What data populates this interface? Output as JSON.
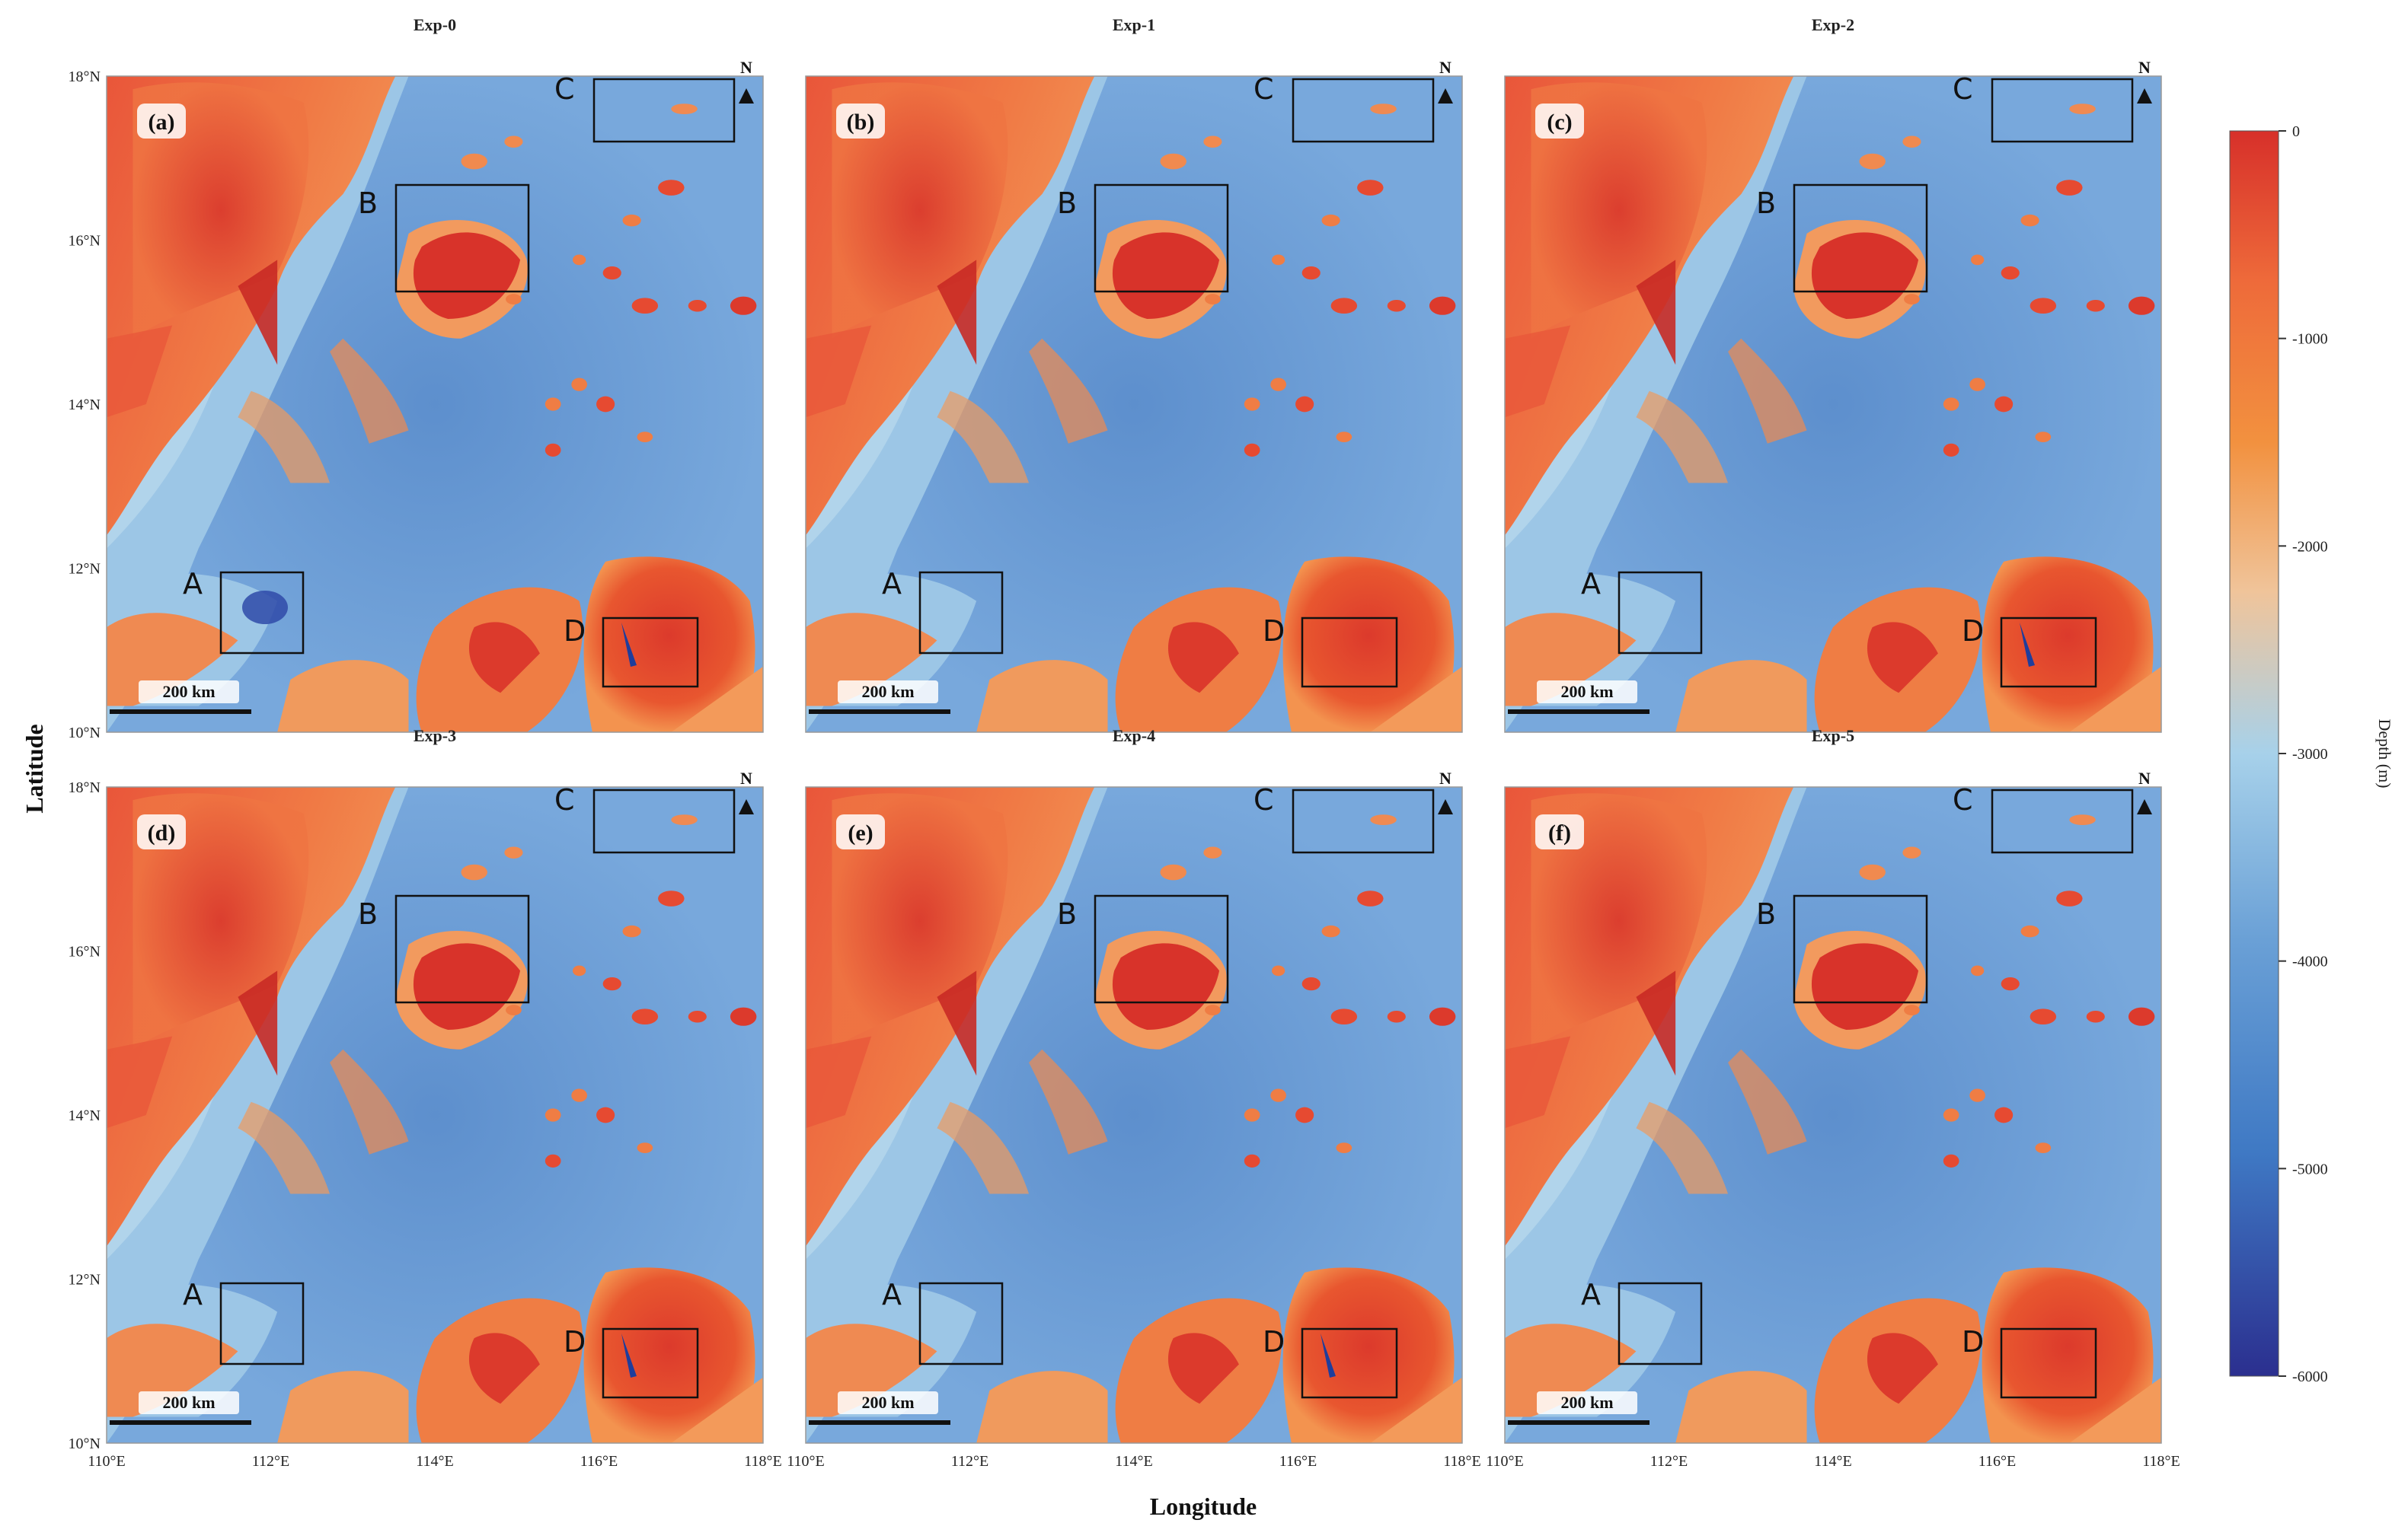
{
  "figure": {
    "x_axis_title": "Longitude",
    "y_axis_title": "Latitude",
    "x_tick_labels": [
      "110°E",
      "112°E",
      "114°E",
      "116°E",
      "118°E"
    ],
    "y_tick_labels": [
      "18°N",
      "16°N",
      "14°N",
      "12°N",
      "10°N"
    ],
    "region_labels": [
      "A",
      "B",
      "C",
      "D"
    ],
    "north_label": "N",
    "scale_bar_label": "200 km"
  },
  "panels": [
    {
      "title": "Exp-0",
      "label": "(a)",
      "anomaly_a": true,
      "anomaly_d": true
    },
    {
      "title": "Exp-1",
      "label": "(b)",
      "anomaly_a": false,
      "anomaly_d": false
    },
    {
      "title": "Exp-2",
      "label": "(c)",
      "anomaly_a": false,
      "anomaly_d": true
    },
    {
      "title": "Exp-3",
      "label": "(d)",
      "anomaly_a": false,
      "anomaly_d": true
    },
    {
      "title": "Exp-4",
      "label": "(e)",
      "anomaly_a": false,
      "anomaly_d": true
    },
    {
      "title": "Exp-5",
      "label": "(f)",
      "anomaly_a": false,
      "anomaly_d": false
    }
  ],
  "colorbar": {
    "title": "Depth (m)",
    "ticks": [
      "0",
      "-1000",
      "-2000",
      "-3000",
      "-4000",
      "-5000",
      "-6000"
    ],
    "min": -6000,
    "max": 0,
    "colors": [
      "#2b2f8f",
      "#3f79c4",
      "#6aa0d6",
      "#a7d1ea",
      "#f0c49a",
      "#f2913f",
      "#ee6a3a",
      "#d7302a"
    ]
  },
  "colors": {
    "deep": "#6497d1",
    "shallow_mid": "#ef7d44",
    "shallow": "#e3482f",
    "light_blue": "#9cc6e6",
    "very_deep": "#2f4aa8"
  }
}
